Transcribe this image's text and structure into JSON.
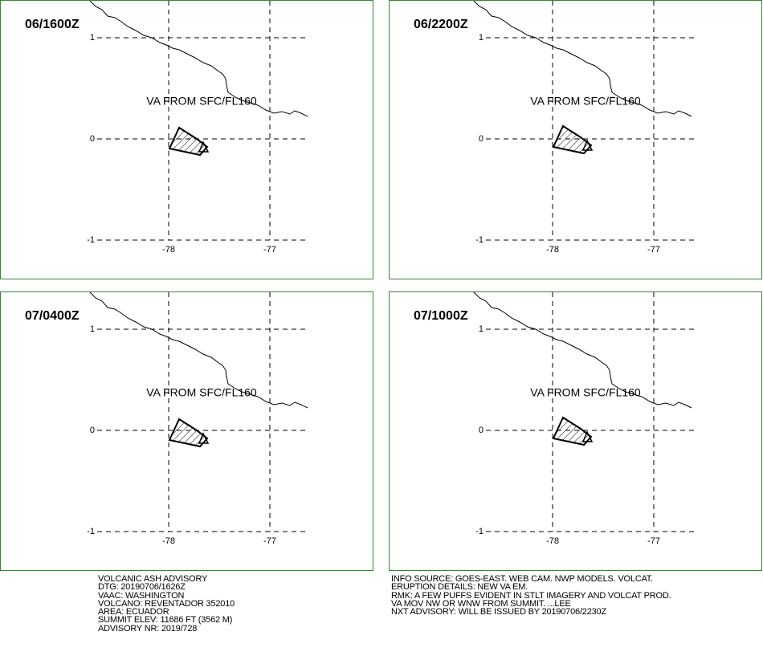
{
  "panels": [
    {
      "time": "06/1600Z",
      "annotation": "VA FROM SFC/FL160",
      "lat_ticks": [
        1,
        0,
        -1
      ],
      "lon_ticks": [
        -78,
        -77
      ]
    },
    {
      "time": "06/2200Z",
      "annotation": "VA FROM SFC/FL160",
      "lat_ticks": [
        1,
        0,
        -1
      ],
      "lon_ticks": [
        -78,
        -77
      ]
    },
    {
      "time": "07/0400Z",
      "annotation": "VA FROM SFC/FL160",
      "lat_ticks": [
        1,
        0,
        -1
      ],
      "lon_ticks": [
        -78,
        -77
      ]
    },
    {
      "time": "07/1000Z",
      "annotation": "VA FROM SFC/FL160",
      "lat_ticks": [
        1,
        0,
        -1
      ],
      "lon_ticks": [
        -78,
        -77
      ]
    }
  ],
  "advisory": {
    "left": [
      "VOLCANIC ASH ADVISORY",
      "DTG: 20190706/1626Z",
      "VAAC: WASHINGTON",
      "VOLCANO: REVENTADOR 352010",
      "AREA: ECUADOR",
      "SUMMIT ELEV: 11686 FT (3562 M)",
      "ADVISORY NR: 2019/728"
    ],
    "right": [
      "INFO SOURCE: GOES-EAST. WEB CAM. NWP MODELS. VOLCAT.",
      "ERUPTION DETAILS: NEW VA EM.",
      "RMK: A FEW PUFFS EVIDENT IN STLT IMAGERY AND VOLCAT PROD.",
      "VA MOV NW OR WNW FROM SUMMIT. ...LEE",
      "NXT ADVISORY: WILL BE ISSUED BY 20190706/2230Z"
    ]
  }
}
